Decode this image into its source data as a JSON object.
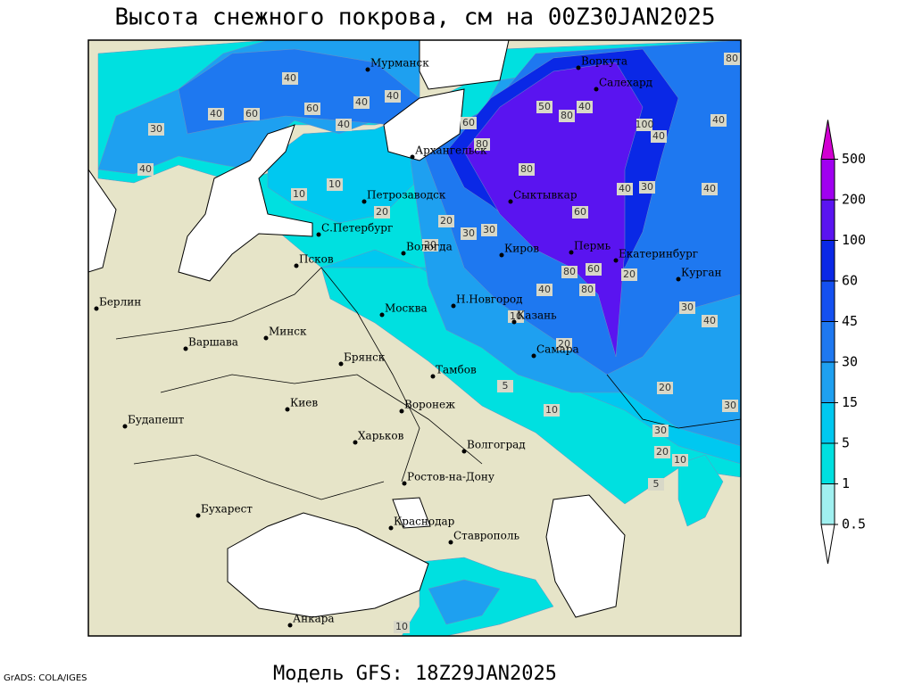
{
  "title": "Высота снежного покрова, см на 00Z30JAN2025",
  "footer": "Модель GFS: 18Z29JAN2025",
  "credit": "GrADS: COLA/IGES",
  "colorbar": {
    "levels": [
      0.5,
      1,
      5,
      15,
      30,
      45,
      60,
      100,
      200,
      500
    ],
    "colors": [
      "#ffffff",
      "#a0f0f0",
      "#00e0e0",
      "#00c8f0",
      "#1ea0f0",
      "#1e78f0",
      "#1450f0",
      "#0a28e6",
      "#5a14f0",
      "#a000f0",
      "#d200d2"
    ]
  },
  "land_color": "#e6e4c8",
  "sea_color": "#ffffff",
  "cities": [
    "Мурманск",
    "Воркута",
    "Салехард",
    "Архангельск",
    "Петрозаводск",
    "Сыктывкар",
    "С.Петербург",
    "Вологда",
    "Киров",
    "Пермь",
    "Екатеринбург",
    "Курган",
    "Псков",
    "Н.Новгород",
    "Москва",
    "Казань",
    "Берлин",
    "Минск",
    "Варшава",
    "Брянск",
    "Самара",
    "Тамбов",
    "Киев",
    "Воронеж",
    "Харьков",
    "Будапешт",
    "Волгоград",
    "Ростов-на-Дону",
    "Бухарест",
    "Краснодар",
    "Ставрополь",
    "Анкара"
  ],
  "contour_labels": [
    40,
    60,
    40,
    40,
    60,
    40,
    30,
    40,
    50,
    80,
    80,
    40,
    60,
    80,
    40,
    100,
    40,
    40,
    40,
    30,
    20,
    10,
    10,
    20,
    30,
    30,
    20,
    40,
    80,
    80,
    60,
    60,
    20,
    40,
    30,
    40,
    10,
    20,
    5,
    10,
    20,
    30,
    30,
    20,
    10,
    5,
    10,
    80
  ]
}
